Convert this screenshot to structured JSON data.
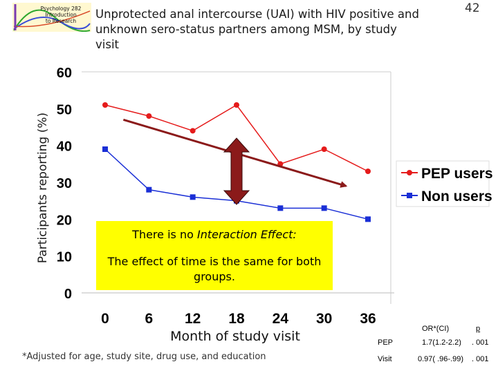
{
  "header": {
    "logo_lines": [
      "Psychology 282",
      "Introduction",
      "to Research"
    ],
    "title": "Unprotected anal intercourse (UAI) with HIV positive and unknown sero-status partners among MSM, by study visit",
    "slide_number": "42"
  },
  "chart_data": {
    "type": "line",
    "x": [
      0,
      6,
      12,
      18,
      24,
      30,
      36
    ],
    "x_tick_labels": [
      "0",
      "6",
      "12",
      "18",
      "24",
      "30",
      "36"
    ],
    "y_ticks": [
      0,
      10,
      20,
      30,
      40,
      50,
      60
    ],
    "y_tick_labels": [
      "0",
      "10",
      "20",
      "30",
      "40",
      "50",
      "60"
    ],
    "ylim": [
      0,
      60
    ],
    "xlabel": "Month of study visit",
    "ylabel": "Participants reporting (%)",
    "grid": false,
    "legend_position": "right",
    "series": [
      {
        "name": "PEP users",
        "values": [
          51,
          48,
          44,
          51,
          35,
          39,
          33
        ],
        "color": "#e51b1b",
        "marker": "circle"
      },
      {
        "name": "Non users",
        "values": [
          39,
          28,
          26,
          25,
          23,
          23,
          20
        ],
        "color": "#1a2fd6",
        "marker": "square"
      }
    ],
    "annotations": {
      "trend_arrow": {
        "x_from": 2.5,
        "y_from": 47,
        "x_to": 33,
        "y_to": 29,
        "color": "#8b1a1a"
      },
      "double_arrow": {
        "x": 18,
        "y_from": 24,
        "y_to": 42,
        "color": "#8b1a1a"
      }
    }
  },
  "note": {
    "line1_prefix": "There is no ",
    "line1_emph": "Interaction Effect:",
    "line2": "The effect of time is the same for both groups."
  },
  "stats_table": {
    "header": [
      "OR*(CI)",
      "p"
    ],
    "rows": [
      {
        "label": "PEP",
        "or": "1.7(1.2-2.2)",
        "p": ". 001"
      },
      {
        "label": "Visit",
        "or": "0.97( .96-.99)",
        "p": ". 001"
      }
    ]
  },
  "footnote": "*Adjusted for age, study site, drug use, and education"
}
